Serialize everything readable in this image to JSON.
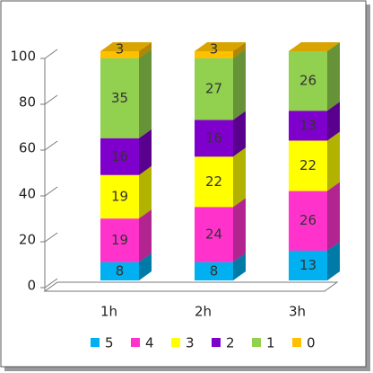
{
  "chart_data": {
    "type": "bar3d_stacked",
    "categories": [
      "1h",
      "2h",
      "3h"
    ],
    "series": [
      {
        "name": "5",
        "color": "#00b0f0",
        "values": [
          8,
          8,
          13
        ]
      },
      {
        "name": "4",
        "color": "#ff33cc",
        "values": [
          19,
          24,
          26
        ]
      },
      {
        "name": "3",
        "color": "#ffff00",
        "values": [
          19,
          22,
          22
        ]
      },
      {
        "name": "2",
        "color": "#7f00cc",
        "values": [
          16,
          16,
          13
        ]
      },
      {
        "name": "1",
        "color": "#92d050",
        "values": [
          35,
          27,
          26
        ]
      },
      {
        "name": "0",
        "color": "#ffc000",
        "values": [
          3,
          3,
          0
        ]
      }
    ],
    "ylim": [
      0,
      100
    ],
    "yticks": [
      0,
      20,
      40,
      60,
      80,
      100
    ],
    "legend": "bottom"
  }
}
